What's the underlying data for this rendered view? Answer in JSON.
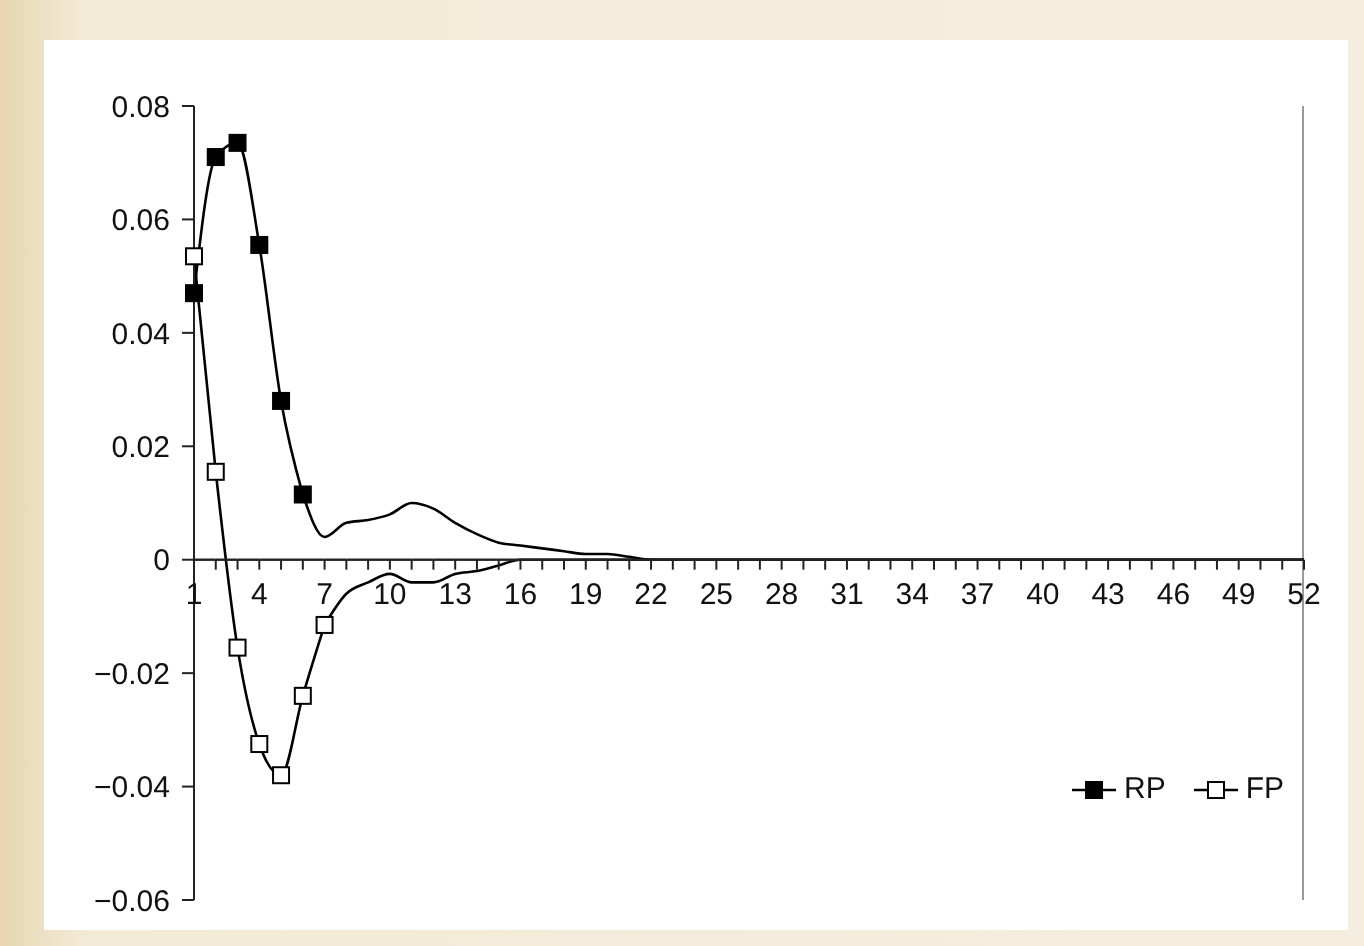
{
  "chart_data": {
    "type": "line",
    "categories": [
      "1",
      null,
      null,
      "4",
      null,
      null,
      "7",
      null,
      null,
      "10",
      null,
      null,
      "13",
      null,
      null,
      "16",
      null,
      null,
      "19",
      null,
      null,
      "22",
      null,
      null,
      "25",
      null,
      null,
      "28",
      null,
      null,
      "31",
      null,
      null,
      "34",
      null,
      null,
      "37",
      null,
      null,
      "40",
      null,
      null,
      "43",
      null,
      null,
      "46",
      null,
      null,
      "49",
      null,
      null,
      "52"
    ],
    "series": [
      {
        "name": "RP",
        "color": "#000000",
        "marker": "square",
        "values": [
          0.047,
          0.071,
          0.0735,
          0.0555,
          0.028,
          0.0115,
          null,
          null,
          null,
          null,
          null,
          null,
          null,
          null,
          null,
          null,
          null,
          null,
          null,
          null,
          null,
          null,
          null,
          null,
          null,
          null,
          null,
          null,
          null,
          null,
          null,
          null,
          null,
          null,
          null,
          null,
          null,
          null,
          null,
          null,
          null,
          null,
          null,
          null,
          null,
          null,
          null,
          null,
          null,
          null,
          null,
          null
        ]
      },
      {
        "color": "#000000",
        "marker": "none",
        "values": [
          null,
          null,
          null,
          null,
          null,
          0.0115,
          0.004,
          0.0065,
          0.007,
          0.008,
          0.01,
          0.009,
          0.0065,
          0.0045,
          0.003,
          0.0025,
          0.002,
          0.0015,
          0.001,
          0.001,
          0.0005,
          0,
          0,
          0,
          0,
          0,
          0,
          0,
          0,
          0,
          0,
          0,
          0,
          0,
          0,
          0,
          0,
          0,
          0,
          0,
          0,
          0,
          0,
          0,
          0,
          0,
          0,
          0,
          0,
          0,
          0,
          0
        ]
      },
      {
        "name": "FP",
        "color": "#000000",
        "marker": "square",
        "colors": [
          "#ffffff",
          "#ffffff",
          "#ffffff",
          "#ffffff",
          "#ffffff",
          "#ffffff",
          "#ffffff",
          "#ffffff",
          "#ffffff",
          "#ffffff",
          "#ffffff",
          "#ffffff",
          "#ffffff",
          "#ffffff",
          "#ffffff",
          "#ffffff",
          "#ffffff",
          "#ffffff",
          "#ffffff",
          "#ffffff",
          "#ffffff",
          "#ffffff",
          "#ffffff",
          "#ffffff",
          "#ffffff",
          "#ffffff",
          "#ffffff",
          "#ffffff",
          "#ffffff",
          "#ffffff",
          "#ffffff",
          "#ffffff",
          "#ffffff",
          "#ffffff",
          "#ffffff",
          "#ffffff",
          "#ffffff",
          "#ffffff",
          "#ffffff",
          "#ffffff",
          "#ffffff",
          "#ffffff",
          "#ffffff",
          "#ffffff",
          "#ffffff",
          "#ffffff",
          "#ffffff",
          "#ffffff",
          "#ffffff",
          "#ffffff",
          "#ffffff",
          "#ffffff"
        ],
        "values": [
          0.0535,
          0.0155,
          -0.0155,
          -0.0325,
          -0.038,
          -0.024,
          -0.0115,
          null,
          null,
          null,
          null,
          null,
          null,
          null,
          null,
          null,
          null,
          null,
          null,
          null,
          null,
          null,
          null,
          null,
          null,
          null,
          null,
          null,
          null,
          null,
          null,
          null,
          null,
          null,
          null,
          null,
          null,
          null,
          null,
          null,
          null,
          null,
          null,
          null,
          null,
          null,
          null,
          null,
          null,
          null,
          null,
          null
        ]
      },
      {
        "color": "#000000",
        "marker": "none",
        "values": [
          null,
          null,
          null,
          null,
          null,
          null,
          -0.0115,
          -0.006,
          -0.004,
          -0.0025,
          -0.004,
          -0.004,
          -0.0025,
          -0.002,
          -0.001,
          0,
          0,
          0,
          0,
          0,
          0,
          0,
          0,
          0,
          0,
          0,
          0,
          0,
          0,
          0,
          0,
          0,
          0,
          0,
          0,
          0,
          0,
          0,
          0,
          0,
          0,
          0,
          0,
          0,
          0,
          0,
          0,
          0,
          0,
          0,
          0,
          0
        ]
      }
    ],
    "ylim": [
      -0.06,
      0.08
    ],
    "yticks": [
      {
        "value": -0.06,
        "label": "−0.06"
      },
      {
        "value": -0.04,
        "label": "−0.04"
      },
      {
        "value": -0.02,
        "label": "−0.02"
      },
      0,
      0.02,
      0.04,
      0.06,
      0.08
    ],
    "legend": "bottom right"
  }
}
